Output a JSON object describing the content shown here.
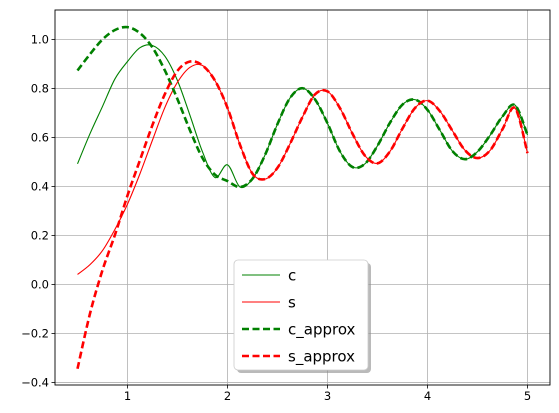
{
  "chart_data": {
    "type": "line",
    "title": "",
    "xlabel": "",
    "ylabel": "",
    "xlim": [
      0.275,
      5.225
    ],
    "ylim": [
      -0.41,
      1.12
    ],
    "xticks": [
      1,
      2,
      3,
      4,
      5
    ],
    "xtick_labels": [
      "1",
      "2",
      "3",
      "4",
      "5"
    ],
    "yticks": [
      -0.4,
      -0.2,
      0.0,
      0.2,
      0.4,
      0.6,
      0.8,
      1.0
    ],
    "ytick_labels": [
      "−0.4",
      "−0.2",
      "0.0",
      "0.2",
      "0.4",
      "0.6",
      "0.8",
      "1.0"
    ],
    "grid": true,
    "legend_position": "lower center",
    "x": [
      0.5,
      0.625,
      0.75,
      0.875,
      1.0,
      1.125,
      1.25,
      1.375,
      1.5,
      1.625,
      1.75,
      1.875,
      2.0,
      2.125,
      2.25,
      2.375,
      2.5,
      2.625,
      2.75,
      2.875,
      3.0,
      3.125,
      3.25,
      3.375,
      3.5,
      3.625,
      3.75,
      3.875,
      4.0,
      4.125,
      4.25,
      4.375,
      4.5,
      4.625,
      4.75,
      4.875,
      5.0
    ],
    "series": [
      {
        "name": "c",
        "color": "#008000",
        "style": "solid",
        "values": [
          0.4923,
          0.6154,
          0.7266,
          0.8393,
          0.9098,
          0.9662,
          0.9753,
          0.9309,
          0.8318,
          0.6897,
          0.5413,
          0.4367,
          0.4883,
          0.3979,
          0.4315,
          0.5282,
          0.6548,
          0.7608,
          0.8008,
          0.7553,
          0.6576,
          0.5428,
          0.4793,
          0.4927,
          0.5663,
          0.6601,
          0.7341,
          0.7543,
          0.7124,
          0.6288,
          0.544,
          0.5113,
          0.5419,
          0.6084,
          0.6859,
          0.732,
          0.6099
        ]
      },
      {
        "name": "s",
        "color": "#ff0000",
        "style": "solid",
        "values": [
          0.041,
          0.0812,
          0.1384,
          0.2255,
          0.3281,
          0.4524,
          0.5896,
          0.7236,
          0.8254,
          0.8863,
          0.8936,
          0.8318,
          0.7208,
          0.5701,
          0.4521,
          0.43,
          0.4762,
          0.5738,
          0.6837,
          0.7757,
          0.7878,
          0.7195,
          0.6151,
          0.5254,
          0.4945,
          0.5432,
          0.6366,
          0.72,
          0.75,
          0.7068,
          0.6268,
          0.5477,
          0.5159,
          0.5466,
          0.6337,
          0.7199,
          0.536
        ]
      },
      {
        "name": "c_approx",
        "color": "#008000",
        "style": "dashed",
        "values": [
          0.8731,
          0.9397,
          0.9998,
          1.0383,
          1.0501,
          1.0254,
          0.9667,
          0.8722,
          0.7559,
          0.6291,
          0.516,
          0.448,
          0.4221,
          0.3979,
          0.4315,
          0.5282,
          0.6548,
          0.7608,
          0.8008,
          0.7553,
          0.6576,
          0.5428,
          0.4793,
          0.4927,
          0.5663,
          0.6601,
          0.7341,
          0.7543,
          0.7124,
          0.6288,
          0.544,
          0.5113,
          0.5419,
          0.6084,
          0.6859,
          0.732,
          0.6099
        ]
      },
      {
        "name": "s_approx",
        "color": "#ff0000",
        "style": "dashed",
        "values": [
          -0.3438,
          -0.1187,
          0.0587,
          0.2032,
          0.3632,
          0.5078,
          0.651,
          0.7781,
          0.8722,
          0.91,
          0.8936,
          0.8318,
          0.7208,
          0.5701,
          0.4521,
          0.43,
          0.4762,
          0.5738,
          0.6837,
          0.7757,
          0.7878,
          0.7195,
          0.6151,
          0.5254,
          0.4945,
          0.5432,
          0.6366,
          0.72,
          0.75,
          0.7068,
          0.6268,
          0.5477,
          0.5159,
          0.5466,
          0.6337,
          0.7199,
          0.536
        ]
      }
    ]
  }
}
